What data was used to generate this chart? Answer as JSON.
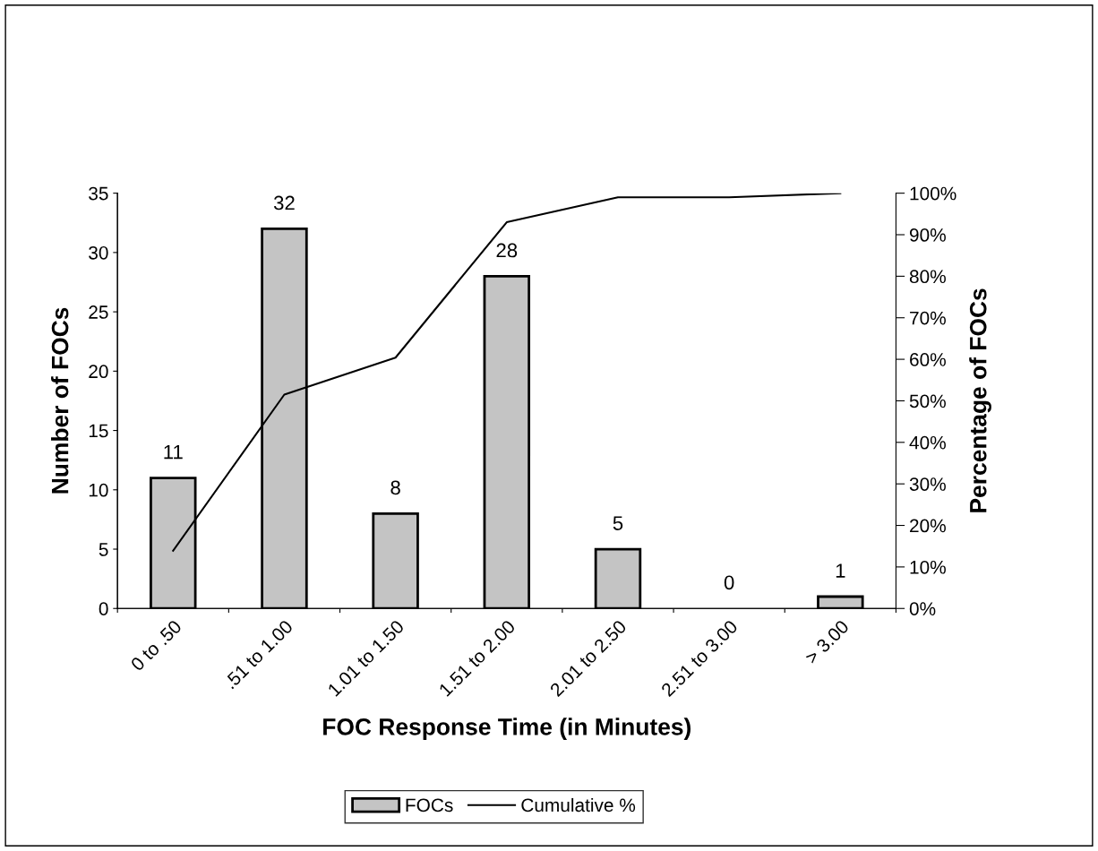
{
  "chart_data": {
    "type": "bar",
    "xlabel": "FOC Response Time (in Minutes)",
    "ylabel": "Number of FOCs",
    "y2label": "Percentage of FOCs",
    "categories": [
      "0 to .50",
      ".51 to 1.00",
      "1.01 to 1.50",
      "1.51 to 2.00",
      "2.01 to 2.50",
      "2.51 to 3.00",
      "> 3.00"
    ],
    "series": [
      {
        "name": "FOCs",
        "color": "#c4c4c4",
        "values": [
          11,
          32,
          8,
          28,
          5,
          0,
          1
        ],
        "data_labels": true
      },
      {
        "name": "Cumulative %",
        "type": "line",
        "color": "#000000",
        "axis": "y2",
        "marker": "none",
        "values": [
          13.9,
          51.5,
          60.4,
          93,
          99,
          99,
          100
        ]
      }
    ],
    "ylim": [
      0,
      35
    ],
    "yticks": [
      0,
      5,
      10,
      15,
      20,
      25,
      30,
      35
    ],
    "y2lim": [
      0,
      100
    ],
    "y2ticks": [
      {
        "value": 0,
        "label": "0%"
      },
      {
        "value": 10,
        "label": "10%"
      },
      {
        "value": 20,
        "label": "20%"
      },
      {
        "value": 30,
        "label": "30%"
      },
      {
        "value": 40,
        "label": "40%"
      },
      {
        "value": 50,
        "label": "50%"
      },
      {
        "value": 60,
        "label": "60%"
      },
      {
        "value": 70,
        "label": "70%"
      },
      {
        "value": 80,
        "label": "80%"
      },
      {
        "value": 90,
        "label": "90%"
      },
      {
        "value": 100,
        "label": "100%"
      }
    ],
    "grid": false,
    "legend": "bottom"
  }
}
